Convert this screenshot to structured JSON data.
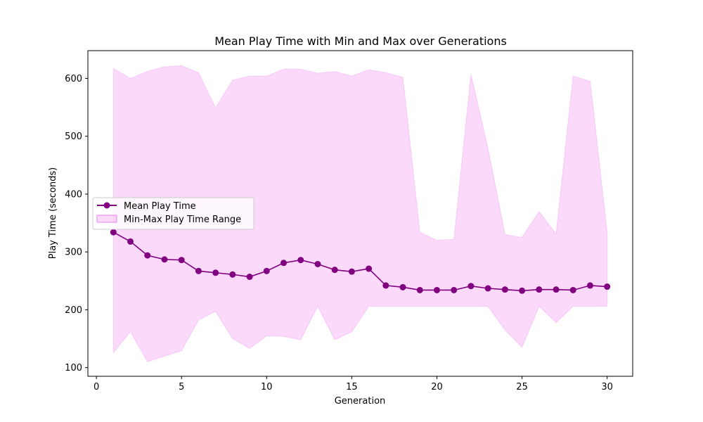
{
  "chart_data": {
    "type": "line",
    "title": "Mean Play Time with Min and Max over Generations",
    "xlabel": "Generation",
    "ylabel": "Play Time (seconds)",
    "xlim": [
      -0.5,
      31.5
    ],
    "ylim": [
      85,
      648
    ],
    "xticks": [
      0,
      5,
      10,
      15,
      20,
      25,
      30
    ],
    "yticks": [
      100,
      200,
      300,
      400,
      500,
      600
    ],
    "grid": false,
    "legend_position": "center-left",
    "x": [
      1,
      2,
      3,
      4,
      5,
      6,
      7,
      8,
      9,
      10,
      11,
      12,
      13,
      14,
      15,
      16,
      17,
      18,
      19,
      20,
      21,
      22,
      23,
      24,
      25,
      26,
      27,
      28,
      29,
      30
    ],
    "series": [
      {
        "name": "Mean Play Time",
        "kind": "line",
        "color": "#800080",
        "marker": "circle",
        "values": [
          334,
          318,
          294,
          287,
          286,
          267,
          264,
          261,
          257,
          267,
          281,
          286,
          279,
          269,
          266,
          271,
          242,
          239,
          234,
          234,
          234,
          241,
          237,
          235,
          233,
          235,
          235,
          234,
          242,
          240
        ]
      },
      {
        "name": "Min-Max Play Time Range",
        "kind": "band",
        "color": "#ee82ee",
        "min": [
          126,
          162,
          110,
          120,
          129,
          182,
          197,
          150,
          133,
          155,
          154,
          148,
          206,
          148,
          162,
          206,
          206,
          206,
          206,
          206,
          206,
          206,
          206,
          165,
          135,
          206,
          178,
          206,
          206,
          206
        ],
        "max": [
          617,
          600,
          612,
          620,
          622,
          610,
          549,
          597,
          604,
          604,
          616,
          616,
          609,
          612,
          604,
          615,
          610,
          602,
          334,
          320,
          322,
          607,
          479,
          330,
          325,
          370,
          331,
          604,
          595,
          333
        ]
      }
    ]
  }
}
